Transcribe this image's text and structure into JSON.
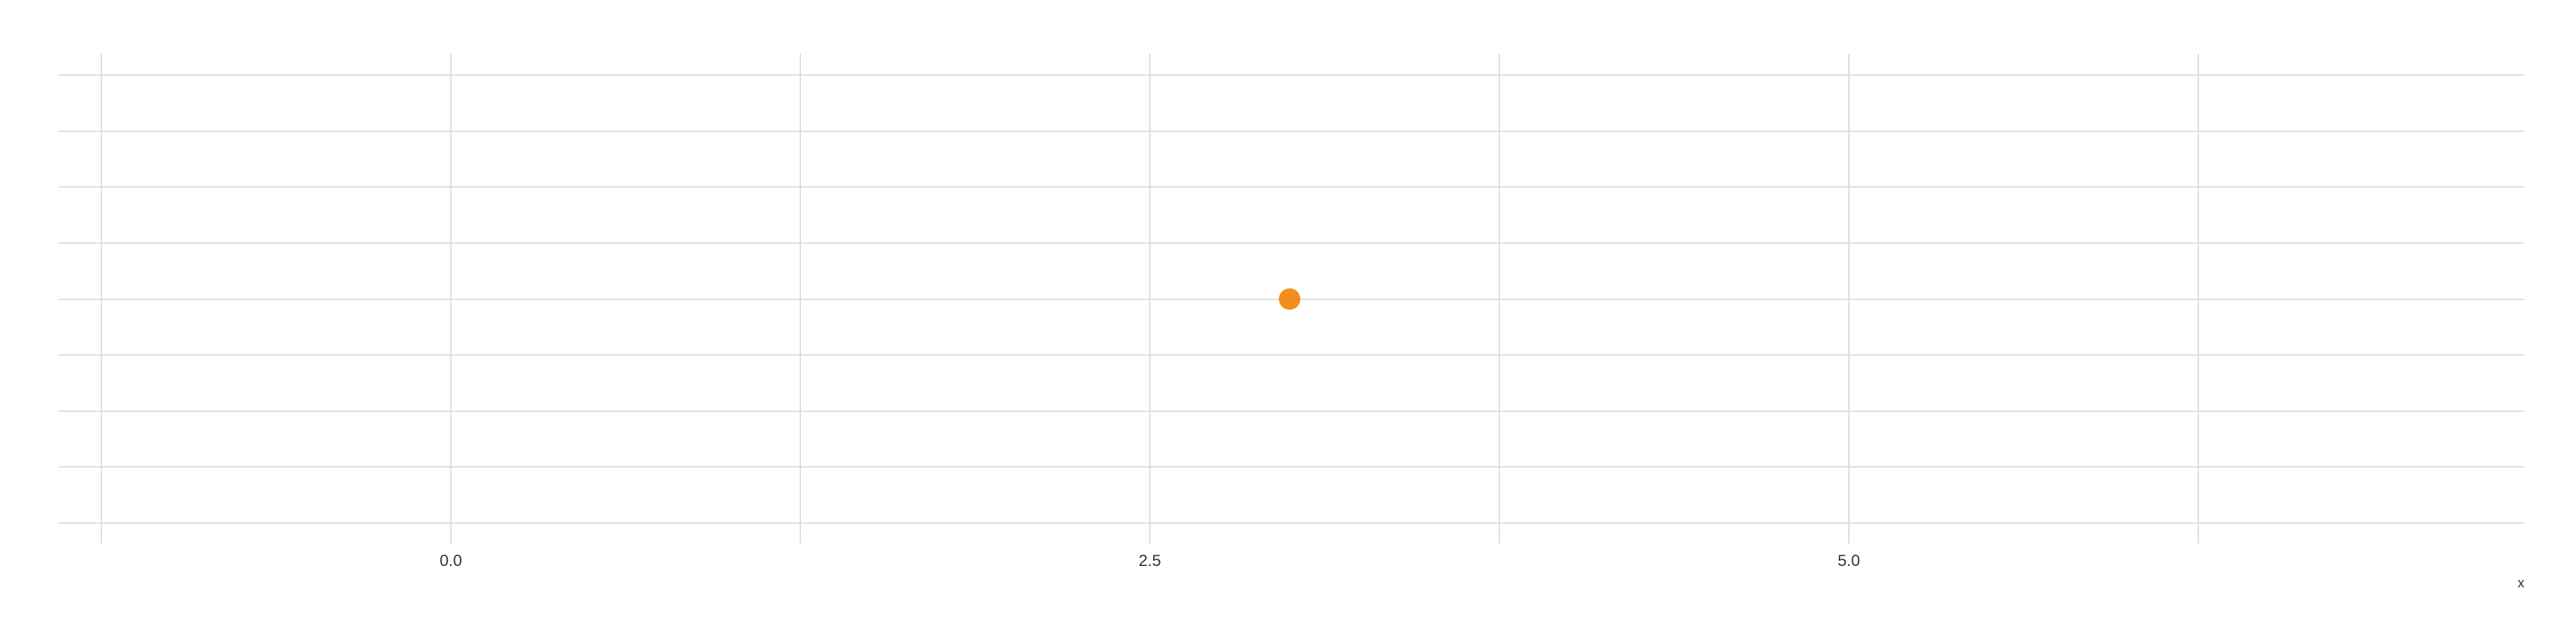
{
  "chart_data": {
    "type": "scatter",
    "title": "",
    "xlabel": "x",
    "ylabel": "",
    "x_ticks": [
      0.0,
      2.5,
      5.0
    ],
    "x_tick_labels": [
      "0.0",
      "2.5",
      "5.0"
    ],
    "x_minor_ticks": [
      -1.25,
      1.25,
      3.75,
      6.25
    ],
    "xlim": [
      -1.25,
      7.5
    ],
    "ylim": [
      0,
      8
    ],
    "y_gridlines": [
      0,
      1,
      2,
      3,
      4,
      5,
      6,
      7,
      8
    ],
    "y_tick_labels_shown": false,
    "grid": true,
    "legend": "none",
    "series": [
      {
        "color": "#f28e1c",
        "points": [
          {
            "x": 3.0,
            "y": 4
          }
        ]
      }
    ]
  }
}
